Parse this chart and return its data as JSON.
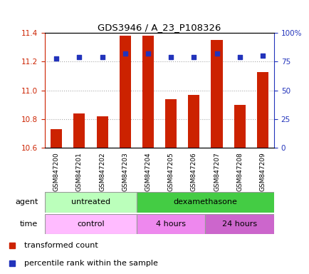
{
  "title": "GDS3946 / A_23_P108326",
  "samples": [
    "GSM847200",
    "GSM847201",
    "GSM847202",
    "GSM847203",
    "GSM847204",
    "GSM847205",
    "GSM847206",
    "GSM847207",
    "GSM847208",
    "GSM847209"
  ],
  "transformed_counts": [
    10.73,
    10.84,
    10.82,
    11.38,
    11.38,
    10.94,
    10.97,
    11.35,
    10.9,
    11.13
  ],
  "percentile_ranks_pct": [
    78,
    79,
    79,
    82,
    82,
    79,
    79,
    82,
    79,
    80
  ],
  "ylim_left": [
    10.6,
    11.4
  ],
  "ylim_right": [
    0,
    100
  ],
  "yticks_left": [
    10.6,
    10.8,
    11.0,
    11.2,
    11.4
  ],
  "yticks_right": [
    0,
    25,
    50,
    75,
    100
  ],
  "ytick_labels_right": [
    "0",
    "25",
    "50",
    "75",
    "100%"
  ],
  "bar_color": "#cc2200",
  "dot_color": "#2233bb",
  "agent_groups": [
    {
      "label": "untreated",
      "start": 0,
      "end": 4,
      "color": "#bbffbb"
    },
    {
      "label": "dexamethasone",
      "start": 4,
      "end": 10,
      "color": "#44cc44"
    }
  ],
  "time_groups": [
    {
      "label": "control",
      "start": 0,
      "end": 4,
      "color": "#ffbbff"
    },
    {
      "label": "4 hours",
      "start": 4,
      "end": 7,
      "color": "#ee88ee"
    },
    {
      "label": "24 hours",
      "start": 7,
      "end": 10,
      "color": "#cc66cc"
    }
  ],
  "legend_bar_label": "transformed count",
  "legend_dot_label": "percentile rank within the sample",
  "agent_label": "agent",
  "time_label": "time",
  "left_axis_color": "#cc2200",
  "right_axis_color": "#2233bb",
  "grid_color": "#aaaaaa",
  "bar_bottom": 10.6
}
